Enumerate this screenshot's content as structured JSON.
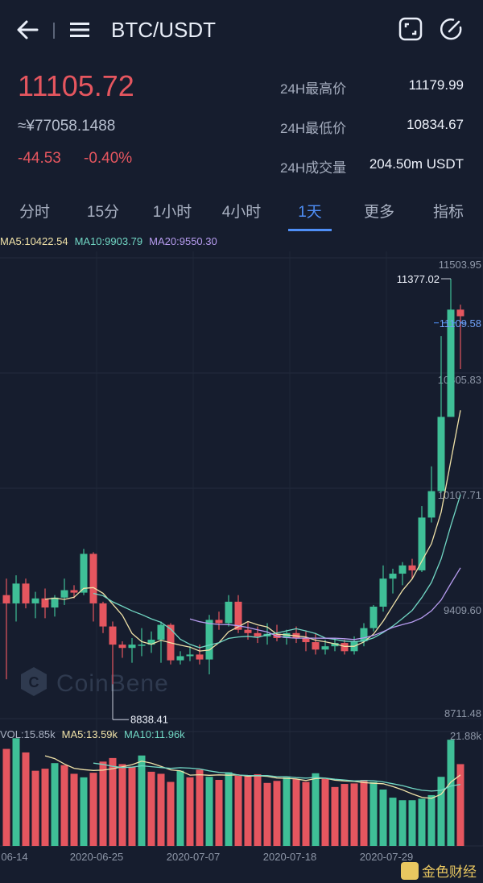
{
  "header": {
    "title": "BTC/USDT",
    "icons": [
      "back-arrow-icon",
      "menu-icon",
      "fullscreen-icon",
      "edit-icon"
    ]
  },
  "ticker": {
    "last_price": "11105.72",
    "cny_price": "≈¥77058.1488",
    "change": "-44.53",
    "change_pct": "-0.40%",
    "high_label": "24H最高价",
    "high_value": "11179.99",
    "low_label": "24H最低价",
    "low_value": "10834.67",
    "vol_label": "24H成交量",
    "vol_value": "204.50m USDT"
  },
  "tabs": [
    {
      "label": "分时"
    },
    {
      "label": "15分"
    },
    {
      "label": "1小时"
    },
    {
      "label": "4小时"
    },
    {
      "label": "1天",
      "active": true
    },
    {
      "label": "更多"
    },
    {
      "label": "指标"
    }
  ],
  "ma_legend": {
    "ma5": "MA5:10422.54",
    "ma10": "MA10:9903.79",
    "ma20": "MA20:9550.30"
  },
  "vol_legend": {
    "vol": "VOL:15.85k",
    "ma5": "MA5:13.59k",
    "ma10": "MA10:11.96k"
  },
  "watermark": "CoinBene",
  "brand": "金色财经",
  "colors": {
    "up": "#3fbf97",
    "down": "#e5565f",
    "ma5": "#f0e2a8",
    "ma10": "#71d7c4",
    "ma20": "#b79cf0",
    "accent": "#4f8ff7"
  },
  "chart_data": {
    "type": "candlestick",
    "y_axis_labels": [
      "11503.95",
      "10805.83",
      "10107.71",
      "9409.60",
      "8711.48"
    ],
    "ylim": [
      8711.48,
      11503.95
    ],
    "vol_axis_label": "21.88k",
    "x_labels": [
      "06-14",
      "2020-06-25",
      "2020-07-07",
      "2020-07-18",
      "2020-07-29"
    ],
    "max_annotation": "11377.02",
    "min_annotation": "8838.41",
    "current_price_label": "11109.58",
    "candles": [
      {
        "o": 9460,
        "h": 9560,
        "l": 8950,
        "c": 9410
      },
      {
        "o": 9410,
        "h": 9580,
        "l": 9300,
        "c": 9530
      },
      {
        "o": 9530,
        "h": 9560,
        "l": 9380,
        "c": 9410
      },
      {
        "o": 9410,
        "h": 9480,
        "l": 9320,
        "c": 9440
      },
      {
        "o": 9440,
        "h": 9500,
        "l": 9320,
        "c": 9385
      },
      {
        "o": 9385,
        "h": 9460,
        "l": 9330,
        "c": 9445
      },
      {
        "o": 9445,
        "h": 9560,
        "l": 9400,
        "c": 9490
      },
      {
        "o": 9490,
        "h": 9520,
        "l": 9440,
        "c": 9475
      },
      {
        "o": 9475,
        "h": 9740,
        "l": 9460,
        "c": 9710
      },
      {
        "o": 9710,
        "h": 9720,
        "l": 9300,
        "c": 9410
      },
      {
        "o": 9410,
        "h": 9420,
        "l": 9230,
        "c": 9270
      },
      {
        "o": 9270,
        "h": 9300,
        "l": 8920,
        "c": 9160
      },
      {
        "o": 9160,
        "h": 9180,
        "l": 9080,
        "c": 9140
      },
      {
        "o": 9140,
        "h": 9200,
        "l": 9050,
        "c": 9160
      },
      {
        "o": 9160,
        "h": 9260,
        "l": 9090,
        "c": 9160
      },
      {
        "o": 9160,
        "h": 9240,
        "l": 9110,
        "c": 9190
      },
      {
        "o": 9190,
        "h": 9300,
        "l": 9050,
        "c": 9280
      },
      {
        "o": 9280,
        "h": 9290,
        "l": 9040,
        "c": 9065
      },
      {
        "o": 9065,
        "h": 9120,
        "l": 9040,
        "c": 9090
      },
      {
        "o": 9090,
        "h": 9150,
        "l": 9060,
        "c": 9100
      },
      {
        "o": 9100,
        "h": 9160,
        "l": 9040,
        "c": 9070
      },
      {
        "o": 9070,
        "h": 9340,
        "l": 8980,
        "c": 9310
      },
      {
        "o": 9310,
        "h": 9360,
        "l": 9250,
        "c": 9290
      },
      {
        "o": 9290,
        "h": 9460,
        "l": 9270,
        "c": 9420
      },
      {
        "o": 9420,
        "h": 9460,
        "l": 9230,
        "c": 9250
      },
      {
        "o": 9250,
        "h": 9300,
        "l": 9190,
        "c": 9230
      },
      {
        "o": 9230,
        "h": 9270,
        "l": 9170,
        "c": 9210
      },
      {
        "o": 9210,
        "h": 9290,
        "l": 9160,
        "c": 9225
      },
      {
        "o": 9225,
        "h": 9280,
        "l": 9180,
        "c": 9200
      },
      {
        "o": 9200,
        "h": 9250,
        "l": 9160,
        "c": 9230
      },
      {
        "o": 9230,
        "h": 9270,
        "l": 9170,
        "c": 9200
      },
      {
        "o": 9200,
        "h": 9240,
        "l": 9120,
        "c": 9175
      },
      {
        "o": 9175,
        "h": 9230,
        "l": 9100,
        "c": 9130
      },
      {
        "o": 9130,
        "h": 9190,
        "l": 9100,
        "c": 9150
      },
      {
        "o": 9150,
        "h": 9200,
        "l": 9120,
        "c": 9170
      },
      {
        "o": 9170,
        "h": 9190,
        "l": 9100,
        "c": 9120
      },
      {
        "o": 9120,
        "h": 9210,
        "l": 9100,
        "c": 9180
      },
      {
        "o": 9180,
        "h": 9290,
        "l": 9150,
        "c": 9260
      },
      {
        "o": 9260,
        "h": 9400,
        "l": 9240,
        "c": 9390
      },
      {
        "o": 9390,
        "h": 9640,
        "l": 9360,
        "c": 9560
      },
      {
        "o": 9560,
        "h": 9620,
        "l": 9470,
        "c": 9590
      },
      {
        "o": 9590,
        "h": 9660,
        "l": 9520,
        "c": 9640
      },
      {
        "o": 9640,
        "h": 9680,
        "l": 9560,
        "c": 9610
      },
      {
        "o": 9610,
        "h": 10000,
        "l": 9600,
        "c": 9930
      },
      {
        "o": 9930,
        "h": 10240,
        "l": 9900,
        "c": 10090
      },
      {
        "o": 10090,
        "h": 11030,
        "l": 10080,
        "c": 10540
      },
      {
        "o": 10540,
        "h": 11377.02,
        "l": 10540,
        "c": 11190
      },
      {
        "o": 11190,
        "h": 11220,
        "l": 10830,
        "c": 11150
      }
    ],
    "volumes": [
      {
        "v": 19.1,
        "up": false
      },
      {
        "v": 21.2,
        "up": true
      },
      {
        "v": 18.4,
        "up": false
      },
      {
        "v": 14.8,
        "up": false
      },
      {
        "v": 15.2,
        "up": false
      },
      {
        "v": 16.3,
        "up": true
      },
      {
        "v": 15.9,
        "up": false
      },
      {
        "v": 14.2,
        "up": false
      },
      {
        "v": 13.5,
        "up": true
      },
      {
        "v": 14.4,
        "up": false
      },
      {
        "v": 16.6,
        "up": false
      },
      {
        "v": 17.3,
        "up": false
      },
      {
        "v": 16.1,
        "up": false
      },
      {
        "v": 15.6,
        "up": false
      },
      {
        "v": 17.8,
        "up": true
      },
      {
        "v": 14.6,
        "up": false
      },
      {
        "v": 14.2,
        "up": false
      },
      {
        "v": 12.6,
        "up": false
      },
      {
        "v": 14.8,
        "up": true
      },
      {
        "v": 13.5,
        "up": false
      },
      {
        "v": 15.0,
        "up": false
      },
      {
        "v": 13.6,
        "up": true
      },
      {
        "v": 13.0,
        "up": false
      },
      {
        "v": 14.5,
        "up": true
      },
      {
        "v": 13.8,
        "up": false
      },
      {
        "v": 13.7,
        "up": false
      },
      {
        "v": 14.1,
        "up": false
      },
      {
        "v": 12.4,
        "up": false
      },
      {
        "v": 12.8,
        "up": false
      },
      {
        "v": 13.5,
        "up": true
      },
      {
        "v": 13.1,
        "up": false
      },
      {
        "v": 12.6,
        "up": false
      },
      {
        "v": 14.3,
        "up": true
      },
      {
        "v": 13.2,
        "up": false
      },
      {
        "v": 11.6,
        "up": false
      },
      {
        "v": 12.2,
        "up": false
      },
      {
        "v": 12.3,
        "up": false
      },
      {
        "v": 13.0,
        "up": false
      },
      {
        "v": 12.6,
        "up": true
      },
      {
        "v": 11.1,
        "up": true
      },
      {
        "v": 9.5,
        "up": true
      },
      {
        "v": 9.0,
        "up": true
      },
      {
        "v": 9.0,
        "up": true
      },
      {
        "v": 9.3,
        "up": true
      },
      {
        "v": 10.0,
        "up": true
      },
      {
        "v": 13.6,
        "up": true
      },
      {
        "v": 20.9,
        "up": true
      },
      {
        "v": 16.1,
        "up": false
      }
    ]
  }
}
